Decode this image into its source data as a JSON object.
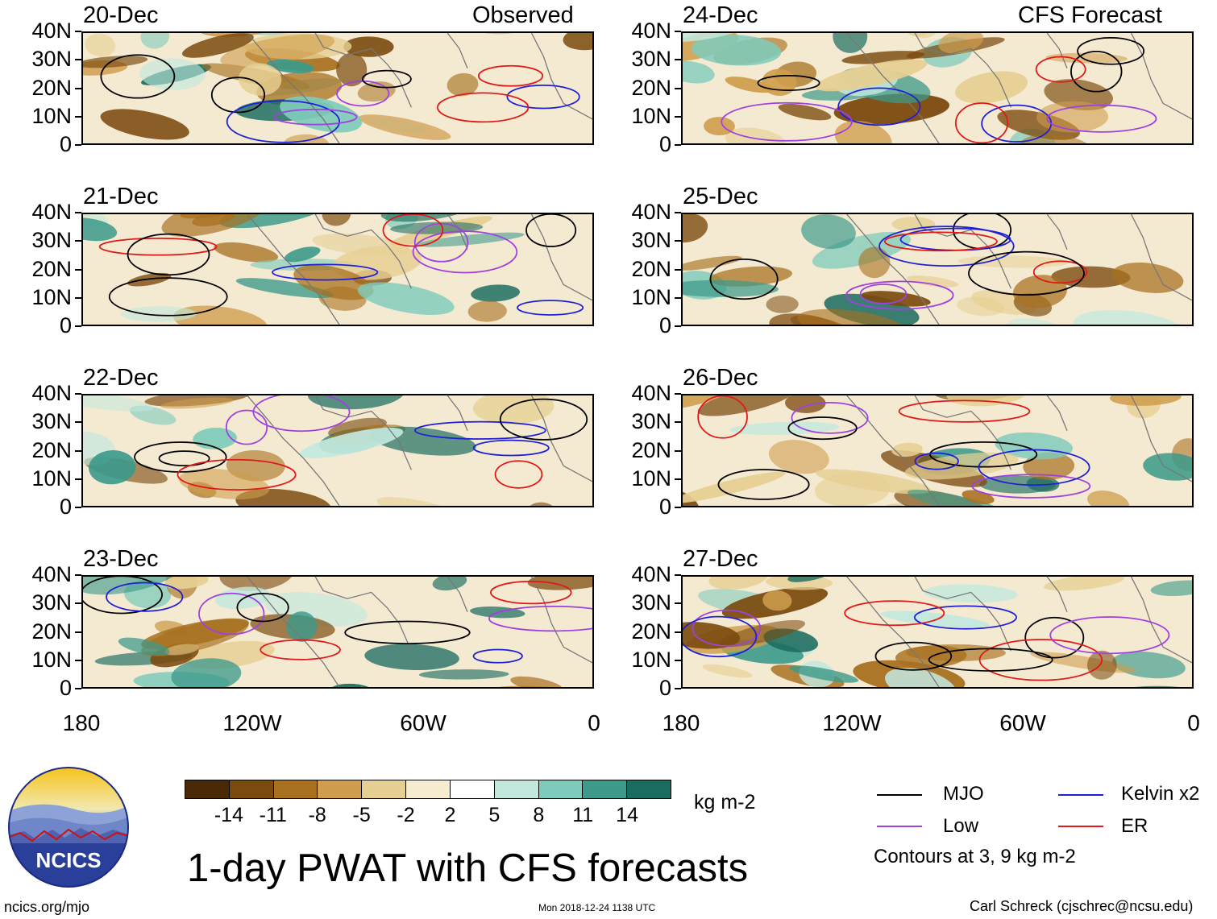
{
  "header": {
    "observed_label": "Observed",
    "forecast_label": "CFS Forecast"
  },
  "panels": [
    {
      "date": "20-Dec"
    },
    {
      "date": "21-Dec"
    },
    {
      "date": "22-Dec"
    },
    {
      "date": "23-Dec"
    },
    {
      "date": "24-Dec"
    },
    {
      "date": "25-Dec"
    },
    {
      "date": "26-Dec"
    },
    {
      "date": "27-Dec"
    }
  ],
  "axes": {
    "y_labels": [
      "40N",
      "30N",
      "20N",
      "10N",
      "0"
    ],
    "x_labels": [
      "180",
      "120W",
      "60W",
      "0"
    ],
    "lat_range": [
      0,
      40
    ],
    "lon_range": [
      -180,
      0
    ]
  },
  "colorbar": {
    "labels": [
      "-14",
      "-11",
      "-8",
      "-5",
      "-2",
      "2",
      "5",
      "8",
      "11",
      "14"
    ],
    "colors": [
      "#4a2a06",
      "#7b4a0e",
      "#a8701f",
      "#cf9d4d",
      "#e6cf92",
      "#f6ecd0",
      "#ffffff",
      "#c2e8de",
      "#7fcbbb",
      "#3d9a8a",
      "#1b6c60",
      "#0a4a40"
    ],
    "units": "kg m-2"
  },
  "title": "1-day PWAT with CFS forecasts",
  "legend": {
    "items": [
      {
        "label": "MJO",
        "color": "#000000"
      },
      {
        "label": "Kelvin x2",
        "color": "#1f1fd8"
      },
      {
        "label": "Low",
        "color": "#a040e0"
      },
      {
        "label": "ER",
        "color": "#e01818"
      }
    ],
    "note": "Contours at 3, 9 kg m-2"
  },
  "footer": {
    "url": "ncics.org/mjo",
    "timestamp": "Mon 2018-12-24 1138 UTC",
    "credit": "Carl Schreck (cjschrec@ncsu.edu)"
  },
  "logo": {
    "text": "NCICS"
  }
}
